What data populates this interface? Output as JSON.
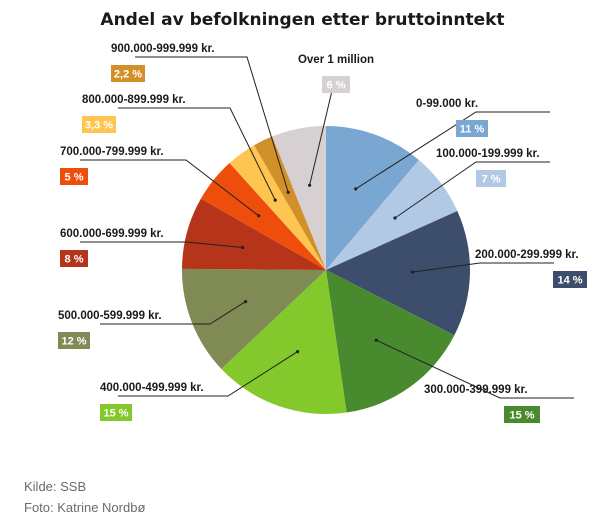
{
  "chart_data": {
    "type": "pie",
    "title": "Andel av befolkningen etter bruttoinntekt",
    "slices": [
      {
        "label": "0-99.000 kr.",
        "percent_label": "11 %",
        "value": 11,
        "color": "#7aa6d2"
      },
      {
        "label": "100.000-199.999 kr.",
        "percent_label": "7 %",
        "value": 7,
        "color": "#b2c9e6"
      },
      {
        "label": "200.000-299.999 kr.",
        "percent_label": "14 %",
        "value": 14,
        "color": "#3c4e6b"
      },
      {
        "label": "300.000-399.999 kr.",
        "percent_label": "15 %",
        "value": 15,
        "color": "#4a8a2e"
      },
      {
        "label": "400.000-499.999 kr.",
        "percent_label": "15 %",
        "value": 15,
        "color": "#83c92b"
      },
      {
        "label": "500.000-599.999 kr.",
        "percent_label": "12 %",
        "value": 12,
        "color": "#7f8a55"
      },
      {
        "label": "600.000-699.999 kr.",
        "percent_label": "8 %",
        "value": 8,
        "color": "#b5341a"
      },
      {
        "label": "700.000-799.999 kr.",
        "percent_label": "5 %",
        "value": 5,
        "color": "#ef4d0c"
      },
      {
        "label": "800.000-899.999 kr.",
        "percent_label": "3,3 %",
        "value": 3.3,
        "color": "#fec550"
      },
      {
        "label": "900.000-999.999 kr.",
        "percent_label": "2,2 %",
        "value": 2.2,
        "color": "#d2902b"
      },
      {
        "label": "Over 1 million",
        "percent_label": "6 %",
        "value": 6,
        "color": "#d6d0d3"
      }
    ]
  },
  "credits": {
    "source": "Kilde: SSB",
    "photo": "Foto: Katrine Nordbø"
  }
}
